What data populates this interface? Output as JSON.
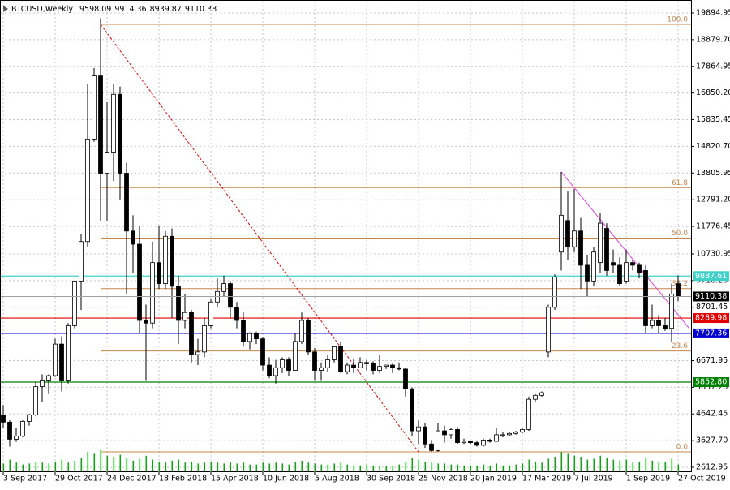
{
  "chart_data": {
    "type": "candlestick",
    "title": "BTCUSD,Weekly",
    "categories": [
      "3 Sep 2017",
      null,
      null,
      null,
      null,
      null,
      null,
      null,
      "29 Oct 2017",
      null,
      null,
      null,
      null,
      null,
      null,
      null,
      "24 Dec 2017",
      null,
      null,
      null,
      null,
      null,
      null,
      null,
      "18 Feb 2018",
      null,
      null,
      null,
      null,
      null,
      null,
      null,
      "15 Apr 2018",
      null,
      null,
      null,
      null,
      null,
      null,
      null,
      "10 Jun 2018",
      null,
      null,
      null,
      null,
      null,
      null,
      null,
      "5 Aug 2018",
      null,
      null,
      null,
      null,
      null,
      null,
      null,
      "30 Sep 2018",
      null,
      null,
      null,
      null,
      null,
      null,
      null,
      "25 Nov 2018",
      null,
      null,
      null,
      null,
      null,
      null,
      null,
      "20 Jan 2019",
      null,
      null,
      null,
      null,
      null,
      null,
      null,
      "17 Mar 2019",
      null,
      null,
      null,
      null,
      null,
      null,
      null,
      "7 Jul 2019",
      null,
      null,
      null,
      null,
      null,
      null,
      null,
      "1 Sep 2019",
      null,
      null,
      null,
      null,
      null,
      null,
      null,
      "27 Oct 2019"
    ],
    "ohlc": [
      [
        4580,
        4980,
        4100,
        4330
      ],
      [
        4330,
        4400,
        3400,
        3680
      ],
      [
        3680,
        4120,
        3580,
        3800
      ],
      [
        3800,
        4400,
        3750,
        4360
      ],
      [
        4360,
        4650,
        4200,
        4600
      ],
      [
        4600,
        5850,
        4550,
        5680
      ],
      [
        5680,
        6150,
        5100,
        5900
      ],
      [
        5900,
        6150,
        5400,
        6100
      ],
      [
        6100,
        7500,
        6050,
        7300
      ],
      [
        7300,
        7600,
        5500,
        5900
      ],
      [
        5900,
        8100,
        5800,
        8000
      ],
      [
        8000,
        9700,
        7900,
        9700
      ],
      [
        9700,
        11500,
        8600,
        11200
      ],
      [
        11200,
        17200,
        11000,
        15100
      ],
      [
        15100,
        17800,
        15000,
        17500
      ],
      [
        17500,
        19700,
        12000,
        13800
      ],
      [
        13800,
        16500,
        12000,
        14600
      ],
      [
        14600,
        17200,
        13500,
        16800
      ],
      [
        16800,
        17100,
        12800,
        13800
      ],
      [
        13800,
        14200,
        9200,
        11600
      ],
      [
        11600,
        12200,
        10000,
        11100
      ],
      [
        11100,
        11800,
        7700,
        8200
      ],
      [
        8200,
        8800,
        5900,
        8100
      ],
      [
        8100,
        11200,
        7900,
        10400
      ],
      [
        10400,
        11800,
        9400,
        9600
      ],
      [
        9600,
        11600,
        9400,
        11400
      ],
      [
        11400,
        11700,
        8300,
        9500
      ],
      [
        9500,
        9900,
        7300,
        8200
      ],
      [
        8200,
        9200,
        7900,
        8500
      ],
      [
        8500,
        8600,
        6600,
        6900
      ],
      [
        6900,
        7500,
        6500,
        7000
      ],
      [
        7000,
        8300,
        6800,
        8000
      ],
      [
        8000,
        9000,
        7900,
        8900
      ],
      [
        8900,
        9800,
        8700,
        9300
      ],
      [
        9300,
        9900,
        9100,
        9600
      ],
      [
        9600,
        9700,
        8300,
        8700
      ],
      [
        8700,
        8900,
        7900,
        8200
      ],
      [
        8200,
        8500,
        7200,
        7400
      ],
      [
        7400,
        7750,
        7100,
        7700
      ],
      [
        7700,
        7780,
        7300,
        7500
      ],
      [
        7500,
        7550,
        6300,
        6500
      ],
      [
        6500,
        6800,
        6000,
        6100
      ],
      [
        6100,
        6700,
        5800,
        6400
      ],
      [
        6400,
        6800,
        6200,
        6700
      ],
      [
        6700,
        6800,
        6100,
        6300
      ],
      [
        6300,
        7700,
        6300,
        7400
      ],
      [
        7400,
        8500,
        7300,
        8200
      ],
      [
        8200,
        8300,
        6900,
        7000
      ],
      [
        7000,
        7150,
        5900,
        6300
      ],
      [
        6300,
        6600,
        5900,
        6400
      ],
      [
        6400,
        6900,
        6250,
        6700
      ],
      [
        6700,
        7200,
        6600,
        7200
      ],
      [
        7200,
        7400,
        6200,
        6250
      ],
      [
        6250,
        6600,
        6150,
        6500
      ],
      [
        6500,
        6750,
        6200,
        6400
      ],
      [
        6400,
        6800,
        6400,
        6600
      ],
      [
        6600,
        6700,
        6300,
        6550
      ],
      [
        6550,
        6650,
        6150,
        6300
      ],
      [
        6300,
        6900,
        6200,
        6450
      ],
      [
        6450,
        6500,
        6350,
        6500
      ],
      [
        6500,
        6550,
        6200,
        6400
      ],
      [
        6400,
        6600,
        6300,
        6350
      ],
      [
        6350,
        6400,
        5300,
        5600
      ],
      [
        5600,
        5650,
        3800,
        4000
      ],
      [
        4000,
        4400,
        3500,
        4150
      ],
      [
        4150,
        4300,
        3350,
        3500
      ],
      [
        3500,
        3650,
        3200,
        3250
      ],
      [
        3250,
        4300,
        3200,
        4000
      ],
      [
        4000,
        4200,
        3550,
        3850
      ],
      [
        3850,
        4100,
        3700,
        4050
      ],
      [
        4050,
        4150,
        3500,
        3550
      ],
      [
        3550,
        3700,
        3500,
        3600
      ],
      [
        3600,
        3620,
        3500,
        3550
      ],
      [
        3550,
        3600,
        3400,
        3450
      ],
      [
        3450,
        3700,
        3400,
        3650
      ],
      [
        3650,
        3700,
        3550,
        3600
      ],
      [
        3600,
        4100,
        3600,
        3850
      ],
      [
        3850,
        3950,
        3750,
        3850
      ],
      [
        3850,
        3950,
        3800,
        3900
      ],
      [
        3900,
        4000,
        3850,
        3950
      ],
      [
        3950,
        4100,
        3900,
        4050
      ],
      [
        4050,
        5300,
        4000,
        5200
      ],
      [
        5200,
        5400,
        5100,
        5350
      ],
      [
        5350,
        5500,
        5300,
        5450
      ],
      [
        7000,
        8800,
        6800,
        8700
      ],
      [
        8700,
        9950,
        8600,
        9850
      ],
      [
        10800,
        13850,
        10100,
        12200
      ],
      [
        12000,
        13100,
        10500,
        11000
      ],
      [
        11000,
        13200,
        10800,
        11600
      ],
      [
        11600,
        12100,
        9400,
        10300
      ],
      [
        10300,
        10700,
        9100,
        9700
      ],
      [
        9700,
        11000,
        9500,
        10800
      ],
      [
        10400,
        12300,
        10000,
        11900
      ],
      [
        11700,
        11900,
        9900,
        10100
      ],
      [
        10400,
        10900,
        10000,
        10300
      ],
      [
        10300,
        10600,
        9500,
        9600
      ],
      [
        9700,
        10900,
        9600,
        10400
      ],
      [
        10400,
        10500,
        10100,
        10300
      ],
      [
        10300,
        10400,
        9800,
        10000
      ],
      [
        10100,
        10300,
        7700,
        8000
      ],
      [
        8000,
        8800,
        7900,
        8200
      ],
      [
        8200,
        8400,
        7700,
        8000
      ],
      [
        8000,
        8300,
        7800,
        7900
      ],
      [
        7900,
        9600,
        7400,
        9200
      ],
      [
        9598.09,
        9914.36,
        8939.87,
        9110.38
      ]
    ],
    "volume": [
      8,
      12,
      9,
      7,
      8,
      10,
      9,
      8,
      10,
      12,
      9,
      11,
      14,
      20,
      18,
      22,
      16,
      15,
      17,
      14,
      11,
      13,
      16,
      12,
      10,
      9,
      11,
      12,
      9,
      10,
      8,
      9,
      10,
      9,
      8,
      9,
      8,
      9,
      7,
      7,
      9,
      8,
      9,
      8,
      7,
      10,
      11,
      9,
      8,
      7,
      7,
      8,
      9,
      7,
      6,
      6,
      7,
      6,
      6,
      5,
      6,
      7,
      10,
      14,
      12,
      10,
      9,
      8,
      8,
      7,
      7,
      6,
      6,
      6,
      7,
      6,
      8,
      6,
      6,
      7,
      8,
      12,
      10,
      9,
      13,
      15,
      20,
      18,
      16,
      15,
      12,
      13,
      16,
      14,
      12,
      11,
      12,
      9,
      10,
      14,
      11,
      10,
      10,
      13,
      7
    ],
    "volume_color": "#00b000",
    "ylim": [
      2428,
      20327
    ],
    "yticks": [
      19894.95,
      {
        "value": 18879.7,
        "label": "18879.70"
      },
      17864.95,
      {
        "value": 16850.2,
        "label": "16850.20"
      },
      15835.45,
      {
        "value": 14820.7,
        "label": "14820.70"
      },
      13805.95,
      {
        "value": 12791.2,
        "label": "12791.20"
      },
      11776.45,
      10730.95,
      {
        "value": 9716.2,
        "label": "9716.20"
      },
      8701.45,
      6671.95,
      {
        "value": 5657.2,
        "label": "5657.20"
      },
      4642.45,
      {
        "value": 3627.7,
        "label": "3627.70"
      },
      2612.95
    ],
    "grid": true,
    "fibonacci": {
      "color": "#c8864a",
      "start": 15,
      "levels": [
        {
          "label": "100.0",
          "value": 19463
        },
        {
          "label": "61.8",
          "value": 13251
        },
        {
          "label": "50.0",
          "value": 11331
        },
        {
          "label": "38.2",
          "value": 9412
        },
        {
          "label": "23.6",
          "value": 7038
        },
        {
          "label": "0.0",
          "value": 3200
        }
      ]
    },
    "levels": [
      {
        "value": 9887.61,
        "color": "#40d0c8"
      },
      {
        "value": 8289.98,
        "color": "#e00000"
      },
      {
        "value": 7707.36,
        "color": "#0000d0"
      },
      {
        "value": 5852.8,
        "label": "5852.80",
        "color": "#008000"
      }
    ],
    "trendlines": [
      {
        "color": "#e00000",
        "dash": true,
        "from": [
          15,
          19463
        ],
        "to": [
          64,
          3200
        ]
      },
      {
        "color": "#e040e0",
        "dash": false,
        "from": [
          86,
          13850
        ],
        "to": [
          105.75,
          7890
        ]
      }
    ]
  }
}
